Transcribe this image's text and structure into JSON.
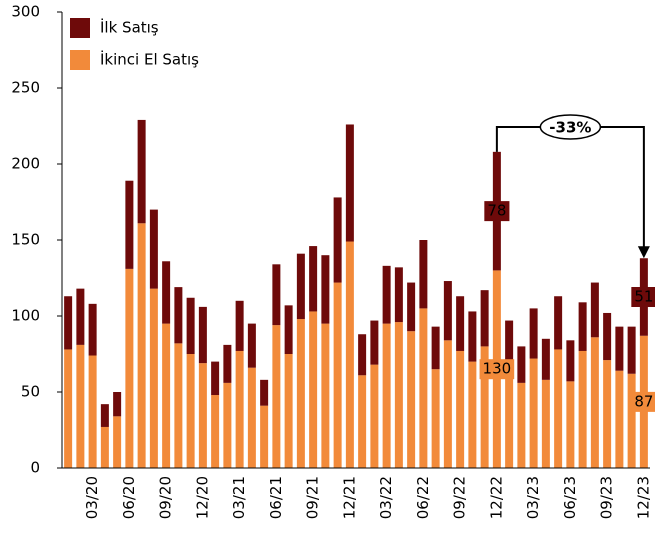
{
  "chart_data": {
    "type": "stacked_bar",
    "categories": [
      null,
      null,
      "03/20",
      null,
      null,
      "06/20",
      null,
      null,
      "09/20",
      null,
      null,
      "12/20",
      null,
      null,
      "03/21",
      null,
      null,
      "06/21",
      null,
      null,
      "09/21",
      null,
      null,
      "12/21",
      null,
      null,
      "03/22",
      null,
      null,
      "06/22",
      null,
      null,
      "09/22",
      null,
      null,
      "12/22",
      null,
      null,
      "03/23",
      null,
      null,
      "06/23",
      null,
      null,
      "09/23",
      null,
      null,
      "12/23"
    ],
    "series": [
      {
        "name": "İlk Satış",
        "color": "#6e0a0a",
        "values": [
          35,
          37,
          34,
          15,
          16,
          58,
          68,
          52,
          41,
          37,
          37,
          37,
          22,
          25,
          33,
          29,
          17,
          40,
          32,
          43,
          43,
          45,
          56,
          77,
          27,
          29,
          38,
          36,
          32,
          45,
          28,
          39,
          36,
          33,
          37,
          78,
          27,
          24,
          33,
          27,
          35,
          27,
          32,
          36,
          31,
          29,
          31,
          51
        ]
      },
      {
        "name": "İkinci El Satış",
        "color": "#f28a3a",
        "values": [
          78,
          81,
          74,
          27,
          34,
          131,
          161,
          118,
          95,
          82,
          75,
          69,
          48,
          56,
          77,
          66,
          41,
          94,
          75,
          98,
          103,
          95,
          122,
          149,
          61,
          68,
          95,
          96,
          90,
          105,
          65,
          84,
          77,
          70,
          80,
          130,
          70,
          56,
          72,
          58,
          78,
          57,
          77,
          86,
          71,
          64,
          62,
          87
        ]
      }
    ],
    "labeled_points": [
      35,
      47
    ],
    "annotation": "-33%",
    "ylim": [
      0,
      300
    ],
    "yticks": [
      0,
      50,
      100,
      150,
      200,
      250,
      300
    ]
  }
}
